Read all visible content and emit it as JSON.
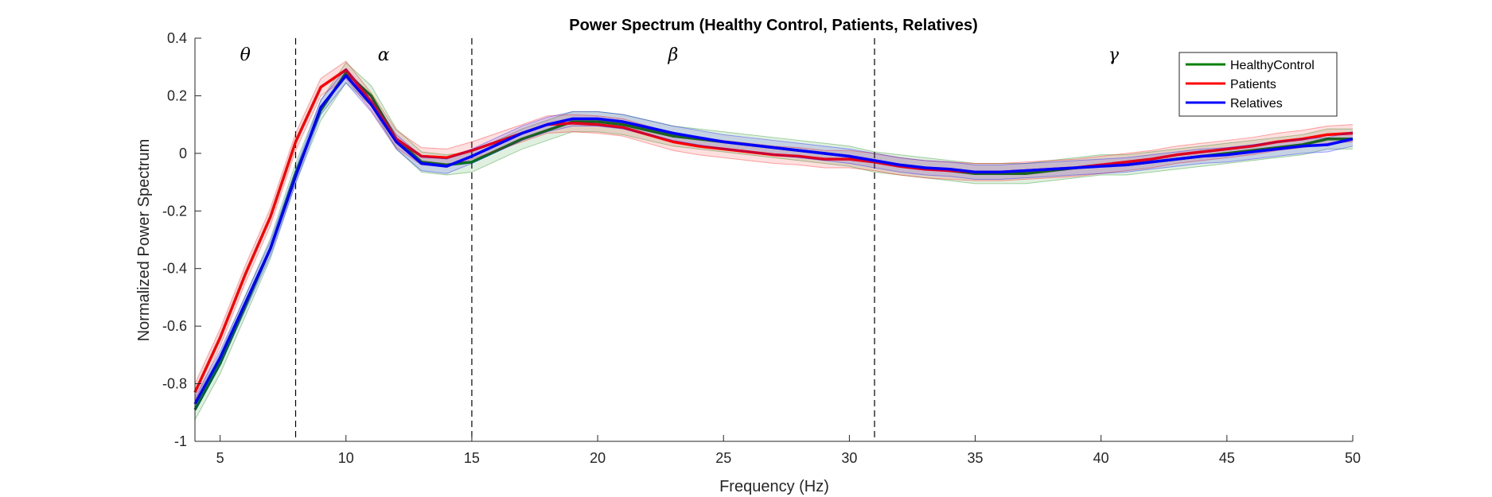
{
  "chart_data": {
    "type": "line",
    "title": "Power Spectrum (Healthy Control, Patients, Relatives)",
    "xlabel": "Frequency (Hz)",
    "ylabel": "Normalized Power Spectrum",
    "xlim": [
      4,
      50
    ],
    "ylim": [
      -1,
      0.4
    ],
    "xticks": [
      5,
      10,
      15,
      20,
      25,
      30,
      35,
      40,
      45,
      50
    ],
    "yticks": [
      -1,
      -0.8,
      -0.6,
      -0.4,
      -0.2,
      0,
      0.2,
      0.4
    ],
    "ytick_labels": [
      "-1",
      "-0.8",
      "-0.6",
      "-0.4",
      "-0.2",
      "0",
      "0.2",
      "0.4"
    ],
    "grid": false,
    "legend_position": "top-right",
    "band_boundaries": [
      8,
      15,
      31
    ],
    "bands": [
      {
        "label": "θ",
        "x": 6
      },
      {
        "label": "α",
        "x": 11.5
      },
      {
        "label": "β",
        "x": 23
      },
      {
        "label": "γ",
        "x": 40.5
      }
    ],
    "x": [
      4,
      5,
      6,
      7,
      8,
      9,
      10,
      11,
      12,
      13,
      14,
      15,
      16,
      17,
      18,
      19,
      20,
      21,
      22,
      23,
      24,
      25,
      26,
      27,
      28,
      29,
      30,
      31,
      32,
      33,
      34,
      35,
      36,
      37,
      38,
      39,
      40,
      41,
      42,
      43,
      44,
      45,
      46,
      47,
      48,
      49,
      50
    ],
    "series": [
      {
        "name": "HealthyControl",
        "color": "#008000",
        "band_width": 0.035,
        "values": [
          -0.89,
          -0.73,
          -0.53,
          -0.33,
          -0.07,
          0.15,
          0.28,
          0.2,
          0.05,
          -0.03,
          -0.04,
          -0.03,
          0.01,
          0.05,
          0.08,
          0.11,
          0.11,
          0.1,
          0.08,
          0.06,
          0.05,
          0.04,
          0.03,
          0.02,
          0.01,
          0.0,
          -0.01,
          -0.03,
          -0.04,
          -0.05,
          -0.06,
          -0.07,
          -0.07,
          -0.07,
          -0.06,
          -0.05,
          -0.04,
          -0.04,
          -0.03,
          -0.02,
          -0.01,
          0.0,
          0.01,
          0.02,
          0.03,
          0.05,
          0.05
        ]
      },
      {
        "name": "Patients",
        "color": "#ff0000",
        "band_width": 0.03,
        "values": [
          -0.83,
          -0.64,
          -0.42,
          -0.22,
          0.04,
          0.23,
          0.29,
          0.18,
          0.05,
          -0.01,
          -0.015,
          0.01,
          0.04,
          0.07,
          0.1,
          0.105,
          0.1,
          0.09,
          0.065,
          0.04,
          0.025,
          0.015,
          0.005,
          -0.005,
          -0.01,
          -0.02,
          -0.02,
          -0.03,
          -0.045,
          -0.055,
          -0.06,
          -0.065,
          -0.065,
          -0.06,
          -0.055,
          -0.05,
          -0.04,
          -0.03,
          -0.02,
          -0.005,
          0.005,
          0.015,
          0.025,
          0.04,
          0.05,
          0.065,
          0.07
        ]
      },
      {
        "name": "Relatives",
        "color": "#0000ff",
        "band_width": 0.025,
        "values": [
          -0.87,
          -0.71,
          -0.52,
          -0.33,
          -0.08,
          0.16,
          0.27,
          0.17,
          0.04,
          -0.035,
          -0.045,
          -0.01,
          0.03,
          0.07,
          0.1,
          0.12,
          0.12,
          0.11,
          0.09,
          0.07,
          0.055,
          0.04,
          0.03,
          0.02,
          0.01,
          0.0,
          -0.01,
          -0.025,
          -0.04,
          -0.05,
          -0.055,
          -0.065,
          -0.065,
          -0.06,
          -0.055,
          -0.05,
          -0.045,
          -0.04,
          -0.03,
          -0.02,
          -0.01,
          -0.005,
          0.005,
          0.015,
          0.025,
          0.03,
          0.05
        ]
      }
    ]
  }
}
